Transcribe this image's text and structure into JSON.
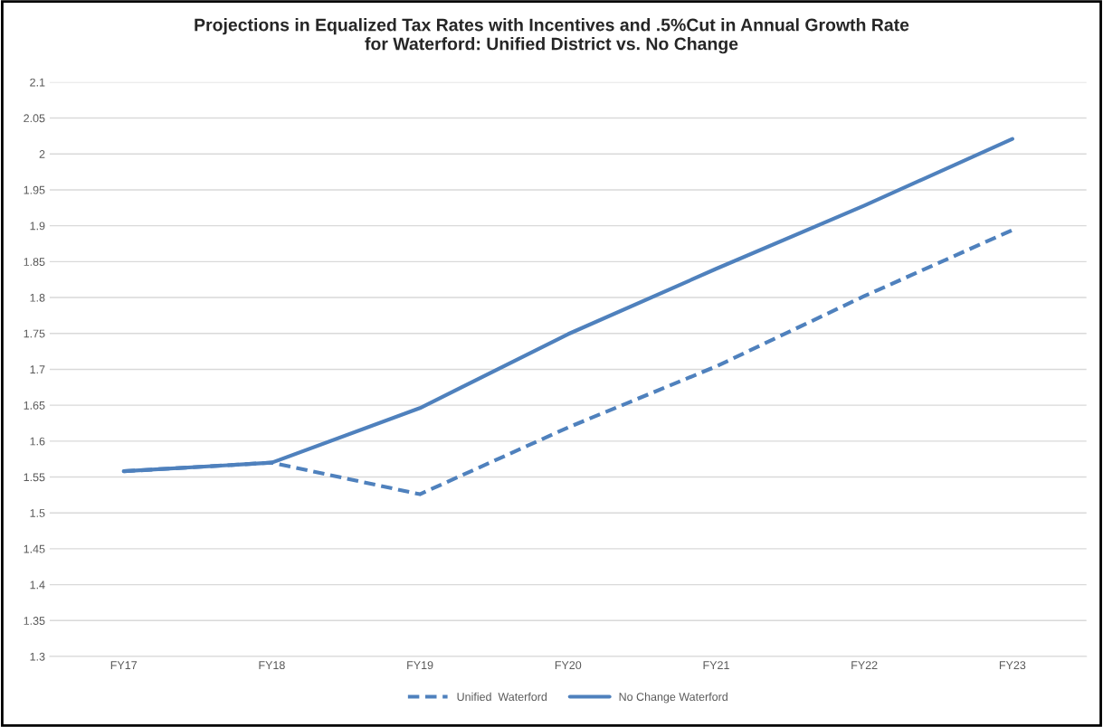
{
  "chart_data": {
    "type": "line",
    "title": "Projections in Equalized Tax Rates with Incentives and .5%Cut in Annual Growth Rate\nfor Waterford: Unified District vs. No Change",
    "categories": [
      "FY17",
      "FY18",
      "FY19",
      "FY20",
      "FY21",
      "FY22",
      "FY23"
    ],
    "series": [
      {
        "name": "Unified  Waterford",
        "color": "#4f81bd",
        "line_style": "dashed",
        "values": [
          1.558,
          1.57,
          1.526,
          1.619,
          1.704,
          1.802,
          1.894
        ]
      },
      {
        "name": "No Change Waterford",
        "color": "#4f81bd",
        "line_style": "solid",
        "values": [
          1.558,
          1.57,
          1.646,
          1.749,
          1.84,
          1.928,
          2.021
        ]
      }
    ],
    "ylim": [
      1.3,
      2.1
    ],
    "yticks": [
      1.3,
      1.35,
      1.4,
      1.45,
      1.5,
      1.55,
      1.6,
      1.65,
      1.7,
      1.75,
      1.8,
      1.85,
      1.9,
      1.95,
      2,
      2.05,
      2.1
    ],
    "grid": "y",
    "legend": "bottom",
    "marker": "none"
  }
}
